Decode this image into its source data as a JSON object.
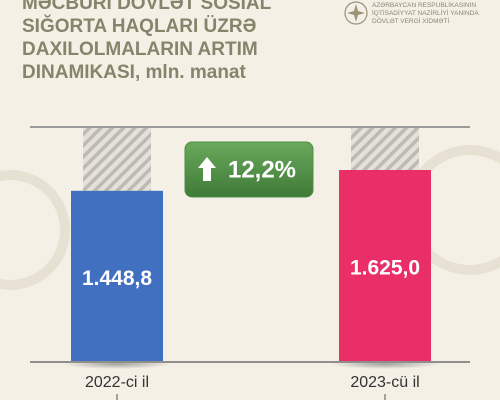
{
  "header": {
    "logo_lines": [
      "AZƏRBAYCAN RESPUBLİKASININ",
      "İQTİSADİYYAT NAZİRLİYİ YANINDA",
      "DÖVLƏT VERGİ XİDMƏTİ"
    ]
  },
  "chart_data": {
    "type": "bar",
    "title": "Məcburi dövlət sosial sığorta haqları üzrə daxilolmaların artım dinamikası,",
    "unit": "mln. manat",
    "categories": [
      "2022-ci il",
      "2023-cü il"
    ],
    "values": [
      1448.8,
      1625.0
    ],
    "value_labels": [
      "1.448,8",
      "1.625,0"
    ],
    "colors": [
      "#4270c0",
      "#ea2e68"
    ],
    "annotation": "12,2%",
    "annotation_color": "#4f8f45"
  }
}
